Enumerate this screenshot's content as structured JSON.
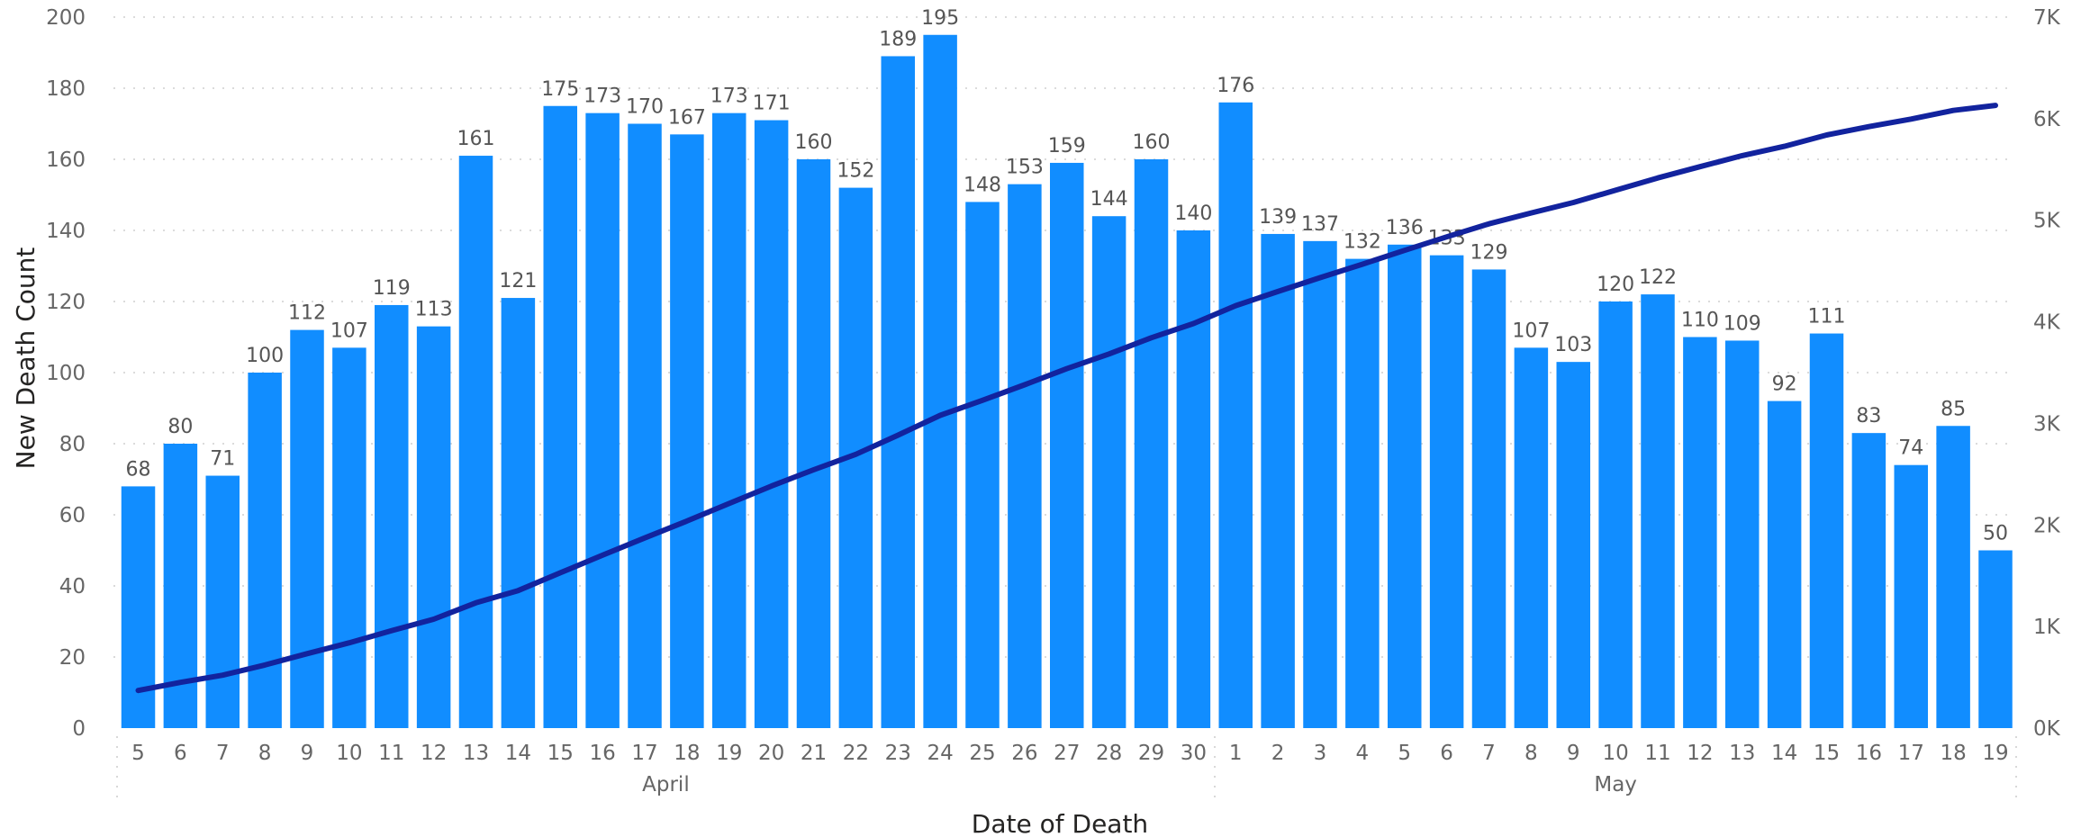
{
  "chart_data": {
    "type": "bar",
    "xlabel": "Date of Death",
    "ylabel": "New Death Count",
    "ylim": [
      0,
      200
    ],
    "yticks": [
      "0",
      "20",
      "40",
      "60",
      "80",
      "100",
      "120",
      "140",
      "160",
      "180",
      "200"
    ],
    "y2lim": [
      0,
      7000
    ],
    "y2ticks": [
      "0K",
      "1K",
      "2K",
      "3K",
      "4K",
      "5K",
      "6K",
      "7K"
    ],
    "grid": true,
    "categories": [
      "5",
      "6",
      "7",
      "8",
      "9",
      "10",
      "11",
      "12",
      "13",
      "14",
      "15",
      "16",
      "17",
      "18",
      "19",
      "20",
      "21",
      "22",
      "23",
      "24",
      "25",
      "26",
      "27",
      "28",
      "29",
      "30",
      "1",
      "2",
      "3",
      "4",
      "5",
      "6",
      "7",
      "8",
      "9",
      "10",
      "11",
      "12",
      "13",
      "14",
      "15",
      "16",
      "17",
      "18",
      "19"
    ],
    "months": [
      {
        "label": "April",
        "start": 0,
        "end": 25
      },
      {
        "label": "May",
        "start": 26,
        "end": 44
      }
    ],
    "series": [
      {
        "type": "bar",
        "axis": "left",
        "color": "#118dff",
        "values": [
          68,
          80,
          71,
          100,
          112,
          107,
          119,
          113,
          161,
          121,
          175,
          173,
          170,
          167,
          173,
          171,
          160,
          152,
          189,
          195,
          148,
          153,
          159,
          144,
          160,
          140,
          176,
          139,
          137,
          132,
          136,
          133,
          129,
          107,
          103,
          120,
          122,
          110,
          109,
          92,
          111,
          83,
          74,
          85,
          50
        ]
      },
      {
        "type": "line",
        "axis": "right",
        "color": "#12239e",
        "values": [
          370,
          450,
          521,
          621,
          733,
          840,
          959,
          1072,
          1233,
          1354,
          1529,
          1702,
          1872,
          2039,
          2212,
          2383,
          2543,
          2695,
          2884,
          3079,
          3227,
          3380,
          3539,
          3683,
          3843,
          3983,
          4159,
          4298,
          4435,
          4567,
          4703,
          4836,
          4965,
          5072,
          5175,
          5295,
          5417,
          5527,
          5636,
          5728,
          5839,
          5922,
          5996,
          6081,
          6131
        ]
      }
    ]
  }
}
